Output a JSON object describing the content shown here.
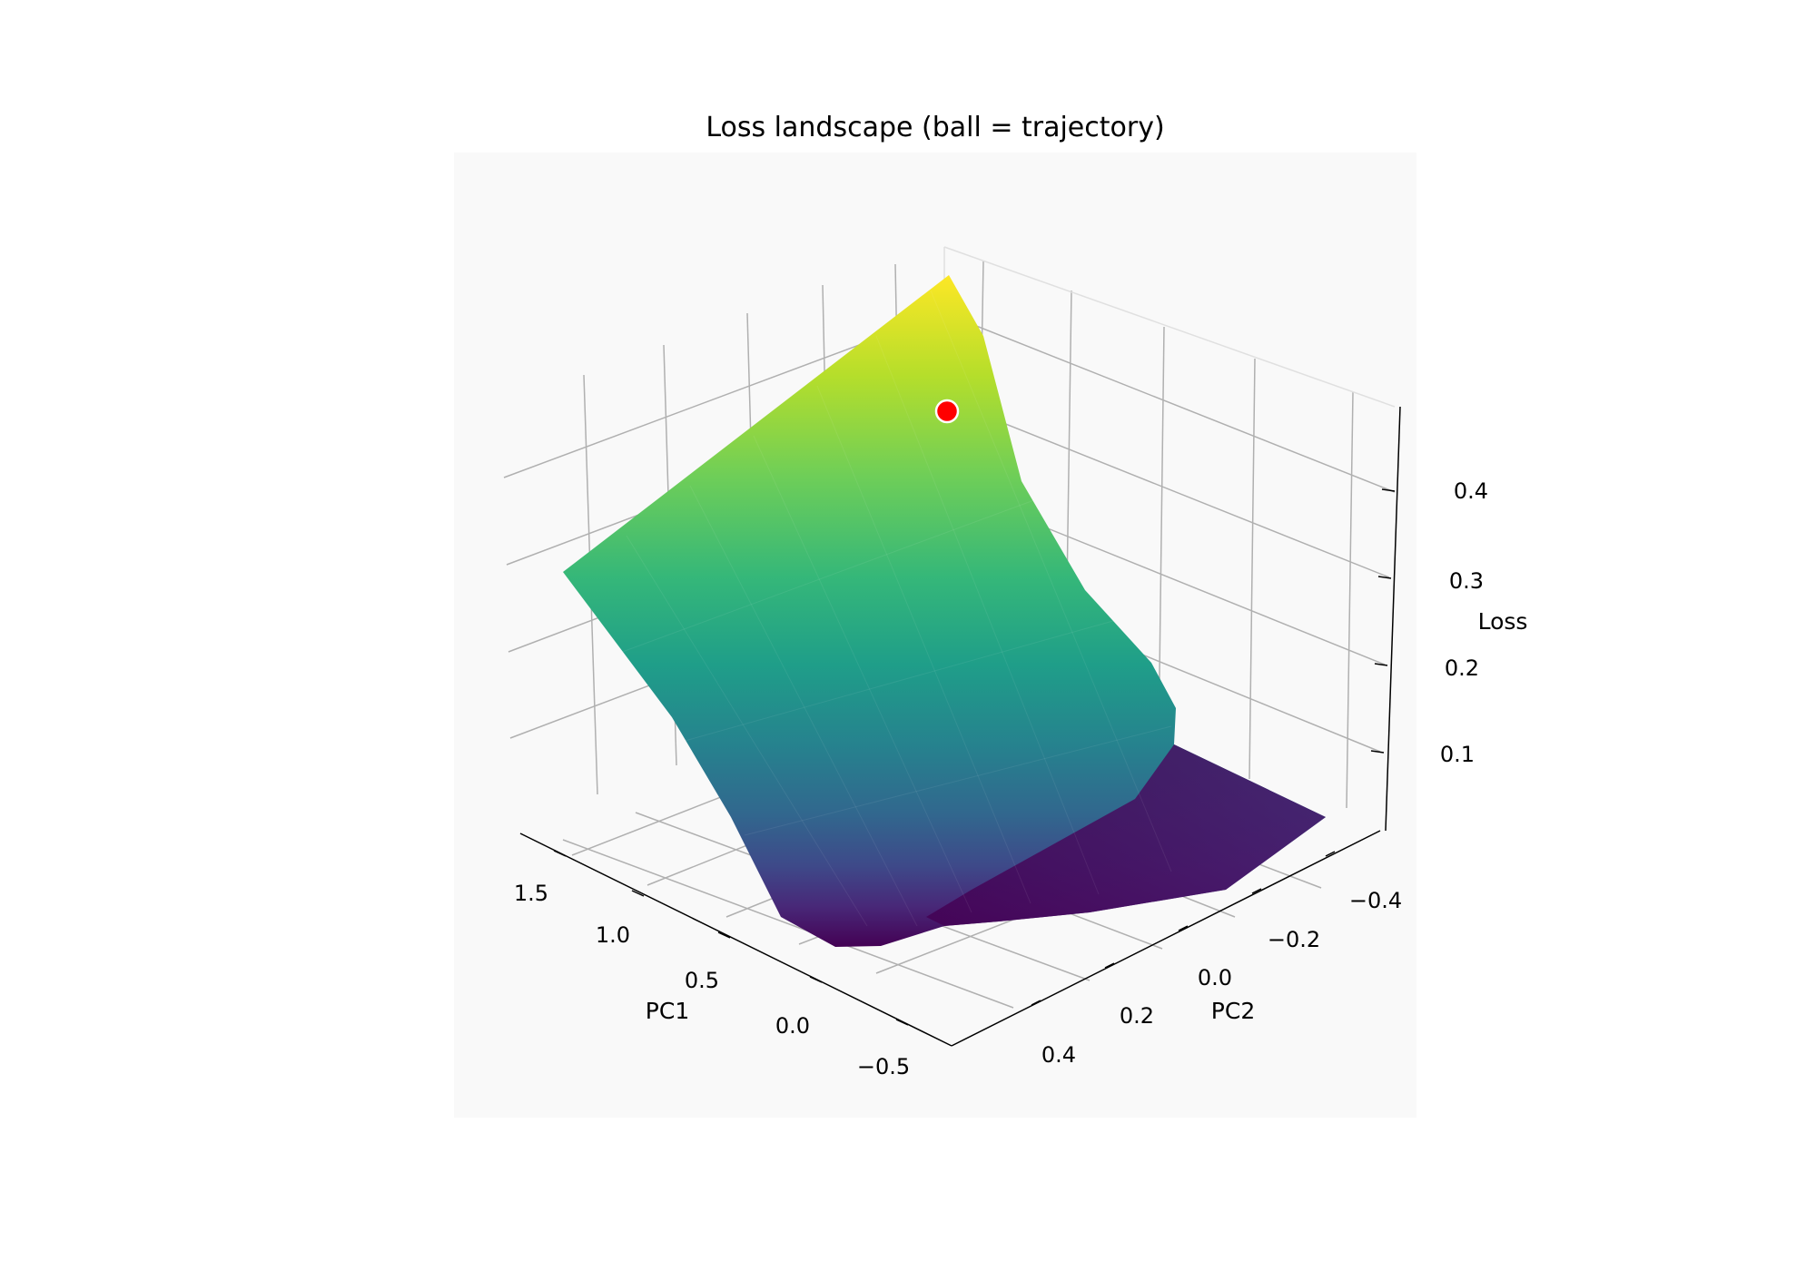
{
  "chart_data": {
    "type": "surface3d",
    "title": "Loss landscape (ball = trajectory)",
    "xlabel": "PC1",
    "ylabel": "PC2",
    "zlabel": "Loss",
    "xlim": [
      -0.6,
      1.75
    ],
    "ylim": [
      -0.55,
      0.55
    ],
    "zlim": [
      0.0,
      0.47
    ],
    "x_ticks": [
      -0.5,
      0.0,
      0.5,
      1.0,
      1.5
    ],
    "x_tick_labels": [
      "−0.5",
      "0.0",
      "0.5",
      "1.0",
      "1.5"
    ],
    "y_ticks": [
      -0.4,
      -0.2,
      0.0,
      0.2,
      0.4
    ],
    "y_tick_labels": [
      "−0.4",
      "−0.2",
      "0.0",
      "0.2",
      "0.4"
    ],
    "z_ticks": [
      0.1,
      0.2,
      0.3,
      0.4
    ],
    "z_tick_labels": [
      "0.1",
      "0.2",
      "0.3",
      "0.4"
    ],
    "colormap": "viridis",
    "grid": true,
    "pane_color": "#f9f9f9",
    "surface_corners": [
      {
        "pc1": 1.75,
        "pc2": 0.55,
        "loss": 0.3
      },
      {
        "pc1": 1.75,
        "pc2": -0.55,
        "loss": 0.47
      },
      {
        "pc1": -0.6,
        "pc2": -0.55,
        "loss": 0.02
      },
      {
        "pc1": -0.6,
        "pc2": 0.55,
        "loss": 0.02
      }
    ],
    "ball": {
      "pc1": 1.5,
      "pc2": -0.45,
      "loss": 0.4,
      "color": "#ff0000"
    }
  }
}
